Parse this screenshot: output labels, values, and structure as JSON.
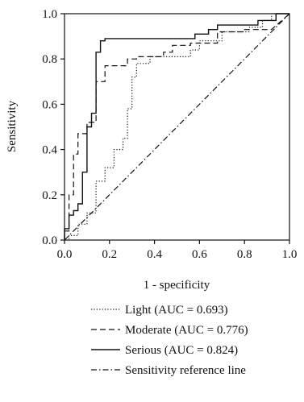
{
  "chart_data": {
    "type": "line",
    "title": "",
    "xlabel": "1 - specificity",
    "ylabel": "Sensitivity",
    "xlim": [
      0,
      1
    ],
    "ylim": [
      0,
      1
    ],
    "xticks": [
      "0.0",
      "0.2",
      "0.4",
      "0.6",
      "0.8",
      "1.0"
    ],
    "yticks": [
      "0.0",
      "0.2",
      "0.4",
      "0.6",
      "0.8",
      "1.0"
    ],
    "grid": false,
    "legend_position": "bottom",
    "series": [
      {
        "name": "Light (AUC = 0.693)",
        "style": "dotted",
        "x": [
          0,
          0.02,
          0.02,
          0.06,
          0.06,
          0.1,
          0.1,
          0.14,
          0.14,
          0.18,
          0.18,
          0.22,
          0.22,
          0.26,
          0.26,
          0.28,
          0.28,
          0.3,
          0.3,
          0.32,
          0.32,
          0.38,
          0.38,
          0.56,
          0.56,
          0.6,
          0.6,
          0.7,
          0.7,
          0.82,
          0.82,
          0.88,
          0.88,
          0.92,
          0.92,
          1.0
        ],
        "y": [
          0,
          0,
          0.02,
          0.02,
          0.07,
          0.07,
          0.12,
          0.12,
          0.26,
          0.26,
          0.32,
          0.32,
          0.4,
          0.4,
          0.45,
          0.45,
          0.58,
          0.58,
          0.72,
          0.72,
          0.78,
          0.78,
          0.81,
          0.81,
          0.84,
          0.84,
          0.88,
          0.88,
          0.92,
          0.92,
          0.94,
          0.94,
          0.97,
          0.97,
          1.0,
          1.0
        ]
      },
      {
        "name": "Moderate (AUC = 0.776)",
        "style": "dashed",
        "x": [
          0,
          0,
          0.02,
          0.02,
          0.04,
          0.04,
          0.06,
          0.06,
          0.1,
          0.1,
          0.14,
          0.14,
          0.18,
          0.18,
          0.28,
          0.28,
          0.32,
          0.32,
          0.44,
          0.44,
          0.48,
          0.48,
          0.56,
          0.56,
          0.68,
          0.68,
          0.8,
          0.8,
          0.92,
          0.92,
          1.0
        ],
        "y": [
          0,
          0.04,
          0.04,
          0.2,
          0.2,
          0.38,
          0.38,
          0.47,
          0.47,
          0.52,
          0.52,
          0.7,
          0.7,
          0.77,
          0.77,
          0.8,
          0.8,
          0.81,
          0.81,
          0.83,
          0.83,
          0.86,
          0.86,
          0.87,
          0.87,
          0.92,
          0.92,
          0.93,
          0.93,
          0.93,
          1.0
        ]
      },
      {
        "name": "Serious (AUC = 0.824)",
        "style": "solid",
        "x": [
          0,
          0,
          0.02,
          0.02,
          0.04,
          0.04,
          0.06,
          0.06,
          0.08,
          0.08,
          0.1,
          0.1,
          0.12,
          0.12,
          0.14,
          0.14,
          0.16,
          0.16,
          0.18,
          0.18,
          0.58,
          0.58,
          0.64,
          0.64,
          0.68,
          0.68,
          0.86,
          0.86,
          0.94,
          0.94,
          1.0
        ],
        "y": [
          0,
          0.05,
          0.05,
          0.11,
          0.11,
          0.13,
          0.13,
          0.16,
          0.16,
          0.3,
          0.3,
          0.5,
          0.5,
          0.56,
          0.56,
          0.83,
          0.83,
          0.88,
          0.88,
          0.89,
          0.89,
          0.91,
          0.91,
          0.93,
          0.93,
          0.95,
          0.95,
          0.97,
          0.97,
          1.0,
          1.0
        ]
      },
      {
        "name": "Sensitivity reference line",
        "style": "dashdot",
        "x": [
          0,
          1
        ],
        "y": [
          0,
          1
        ]
      }
    ]
  }
}
